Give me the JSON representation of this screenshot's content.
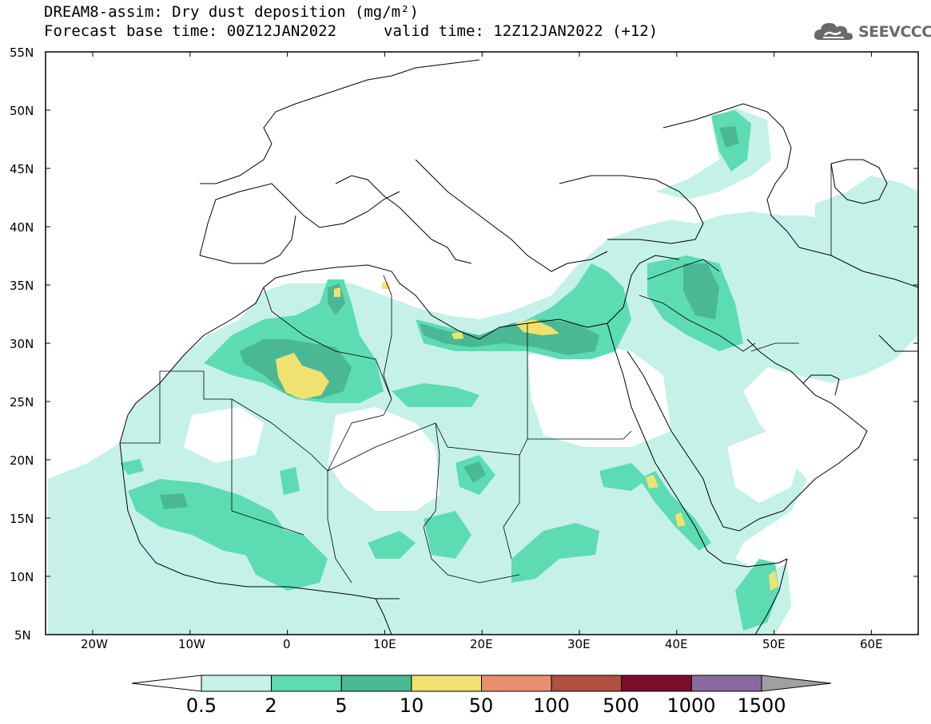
{
  "header": {
    "title": "DREAM8-assim: Dry dust deposition (mg/m²)",
    "base_time": "Forecast base time: 00Z12JAN2022",
    "valid_time": "valid time: 12Z12JAN2022 (+12)",
    "logo_text": "SEEVCCC",
    "logo_icon": "cloud-icon"
  },
  "axes": {
    "lat_labels": [
      "55N",
      "50N",
      "45N",
      "40N",
      "35N",
      "30N",
      "25N",
      "20N",
      "15N",
      "10N",
      "5N"
    ],
    "lon_labels": [
      "20W",
      "10W",
      "0",
      "10E",
      "20E",
      "30E",
      "40E",
      "50E",
      "60E"
    ]
  },
  "legend": {
    "labels": [
      "0.5",
      "2",
      "5",
      "10",
      "50",
      "100",
      "500",
      "1000",
      "1500"
    ],
    "colors": [
      "#c5f1e8",
      "#5ddcb4",
      "#4ab895",
      "#f0e270",
      "#e89070",
      "#b05040",
      "#7c0d2a",
      "#8a6a9e"
    ],
    "under_color": "#ffffff",
    "over_color": "#a0a0a0"
  }
}
